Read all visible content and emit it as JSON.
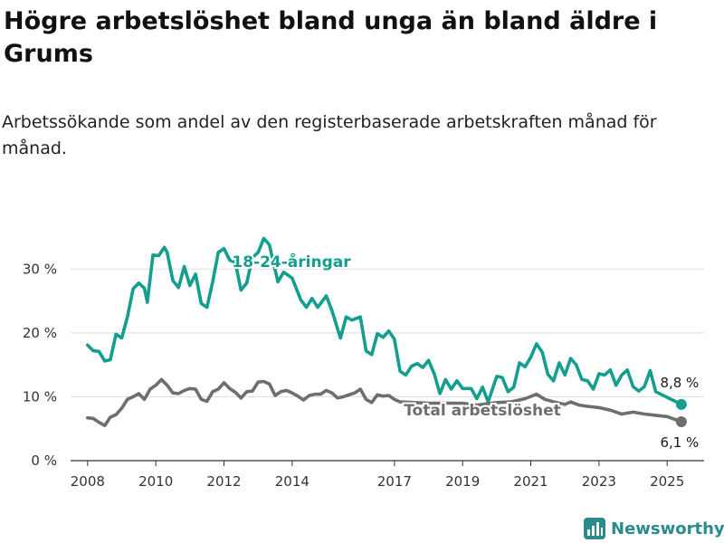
{
  "title": "Högre arbetslöshet bland unga än bland äldre i Grums",
  "subtitle": "Arbetssökande som andel av den registerbaserade arbetskraften månad för månad.",
  "brand": {
    "name": "Newsworthy",
    "icon": "newsworthy-bar-chart-icon"
  },
  "chart_data": {
    "type": "line",
    "title": "Högre arbetslöshet bland unga än bland äldre i Grums",
    "subtitle": "Arbetssökande som andel av den registerbaserade arbetskraften månad för månad.",
    "xlabel": "",
    "ylabel": "",
    "x_ticks": [
      "2008",
      "2010",
      "2012",
      "2014",
      "2017",
      "2019",
      "2021",
      "2023",
      "2025"
    ],
    "y_ticks": [
      {
        "value": 0,
        "label": "0 %"
      },
      {
        "value": 10,
        "label": "10 %"
      },
      {
        "value": 20,
        "label": "20 %"
      },
      {
        "value": 30,
        "label": "30 %"
      }
    ],
    "ylim": [
      0,
      35
    ],
    "xlim": [
      "2007-07",
      "2026-02"
    ],
    "grid": true,
    "legend": "none",
    "colors": {
      "youth": "#139e8e",
      "total": "#6e6e6e",
      "axis": "#333333",
      "grid": "#dddddd"
    },
    "series": [
      {
        "name": "18-24-åringar",
        "end_label": "8,8 %",
        "end_value": 8.8,
        "points": [
          [
            "2008-01",
            18.1
          ],
          [
            "2008-03",
            17.2
          ],
          [
            "2008-05",
            17.1
          ],
          [
            "2008-07",
            15.6
          ],
          [
            "2008-09",
            15.8
          ],
          [
            "2008-11",
            19.8
          ],
          [
            "2009-01",
            19.2
          ],
          [
            "2009-03",
            22.5
          ],
          [
            "2009-05",
            26.9
          ],
          [
            "2009-07",
            27.8
          ],
          [
            "2009-09",
            27.0
          ],
          [
            "2009-10",
            24.8
          ],
          [
            "2009-12",
            32.2
          ],
          [
            "2010-02",
            32.1
          ],
          [
            "2010-04",
            33.4
          ],
          [
            "2010-05",
            32.6
          ],
          [
            "2010-07",
            28.2
          ],
          [
            "2010-09",
            27.1
          ],
          [
            "2010-11",
            30.4
          ],
          [
            "2011-01",
            27.4
          ],
          [
            "2011-03",
            29.2
          ],
          [
            "2011-05",
            24.6
          ],
          [
            "2011-07",
            24.0
          ],
          [
            "2011-09",
            28.0
          ],
          [
            "2011-11",
            32.6
          ],
          [
            "2012-01",
            33.2
          ],
          [
            "2012-03",
            31.4
          ],
          [
            "2012-05",
            31.0
          ],
          [
            "2012-07",
            26.7
          ],
          [
            "2012-09",
            27.8
          ],
          [
            "2012-11",
            31.8
          ],
          [
            "2013-01",
            32.6
          ],
          [
            "2013-03",
            34.8
          ],
          [
            "2013-05",
            33.8
          ],
          [
            "2013-06",
            31.8
          ],
          [
            "2013-08",
            28.0
          ],
          [
            "2013-10",
            29.5
          ],
          [
            "2014-01",
            28.6
          ],
          [
            "2014-04",
            25.2
          ],
          [
            "2014-06",
            24.0
          ],
          [
            "2014-08",
            25.4
          ],
          [
            "2014-10",
            24.0
          ],
          [
            "2015-01",
            25.8
          ],
          [
            "2015-03",
            23.5
          ],
          [
            "2015-05",
            20.6
          ],
          [
            "2015-06",
            19.2
          ],
          [
            "2015-08",
            22.5
          ],
          [
            "2015-10",
            22.0
          ],
          [
            "2016-01",
            22.5
          ],
          [
            "2016-03",
            17.2
          ],
          [
            "2016-05",
            16.6
          ],
          [
            "2016-07",
            19.9
          ],
          [
            "2016-09",
            19.3
          ],
          [
            "2016-11",
            20.3
          ],
          [
            "2017-01",
            19.0
          ],
          [
            "2017-03",
            14.0
          ],
          [
            "2017-05",
            13.4
          ],
          [
            "2017-07",
            14.8
          ],
          [
            "2017-09",
            15.2
          ],
          [
            "2017-11",
            14.6
          ],
          [
            "2018-01",
            15.7
          ],
          [
            "2018-03",
            13.6
          ],
          [
            "2018-05",
            10.5
          ],
          [
            "2018-07",
            12.7
          ],
          [
            "2018-09",
            11.2
          ],
          [
            "2018-11",
            12.5
          ],
          [
            "2019-01",
            11.3
          ],
          [
            "2019-04",
            11.3
          ],
          [
            "2019-06",
            9.7
          ],
          [
            "2019-08",
            11.5
          ],
          [
            "2019-10",
            9.2
          ],
          [
            "2020-01",
            13.2
          ],
          [
            "2020-03",
            13.0
          ],
          [
            "2020-05",
            10.8
          ],
          [
            "2020-07",
            11.5
          ],
          [
            "2020-09",
            15.3
          ],
          [
            "2020-11",
            14.7
          ],
          [
            "2021-01",
            16.2
          ],
          [
            "2021-03",
            18.3
          ],
          [
            "2021-05",
            17.0
          ],
          [
            "2021-07",
            13.5
          ],
          [
            "2021-09",
            12.5
          ],
          [
            "2021-11",
            15.3
          ],
          [
            "2022-01",
            13.4
          ],
          [
            "2022-03",
            16.0
          ],
          [
            "2022-05",
            15.0
          ],
          [
            "2022-07",
            12.7
          ],
          [
            "2022-09",
            12.5
          ],
          [
            "2022-11",
            11.2
          ],
          [
            "2023-01",
            13.6
          ],
          [
            "2023-03",
            13.4
          ],
          [
            "2023-05",
            14.2
          ],
          [
            "2023-07",
            11.8
          ],
          [
            "2023-09",
            13.4
          ],
          [
            "2023-11",
            14.2
          ],
          [
            "2024-01",
            11.6
          ],
          [
            "2024-03",
            10.9
          ],
          [
            "2024-05",
            11.6
          ],
          [
            "2024-07",
            14.1
          ],
          [
            "2024-09",
            10.8
          ],
          [
            "2025-06",
            8.8
          ]
        ]
      },
      {
        "name": "Total arbetslöshet",
        "end_label": "6,1 %",
        "end_value": 6.1,
        "points": [
          [
            "2008-01",
            6.7
          ],
          [
            "2008-03",
            6.6
          ],
          [
            "2008-05",
            6.0
          ],
          [
            "2008-07",
            5.5
          ],
          [
            "2008-09",
            6.8
          ],
          [
            "2008-11",
            7.2
          ],
          [
            "2009-01",
            8.2
          ],
          [
            "2009-03",
            9.6
          ],
          [
            "2009-05",
            10.0
          ],
          [
            "2009-07",
            10.5
          ],
          [
            "2009-09",
            9.6
          ],
          [
            "2009-11",
            11.2
          ],
          [
            "2010-01",
            11.8
          ],
          [
            "2010-03",
            12.7
          ],
          [
            "2010-05",
            11.8
          ],
          [
            "2010-07",
            10.6
          ],
          [
            "2010-09",
            10.5
          ],
          [
            "2010-11",
            11.0
          ],
          [
            "2011-01",
            11.3
          ],
          [
            "2011-03",
            11.2
          ],
          [
            "2011-05",
            9.6
          ],
          [
            "2011-07",
            9.3
          ],
          [
            "2011-09",
            10.8
          ],
          [
            "2011-11",
            11.2
          ],
          [
            "2012-01",
            12.2
          ],
          [
            "2012-03",
            11.3
          ],
          [
            "2012-05",
            10.7
          ],
          [
            "2012-07",
            9.8
          ],
          [
            "2012-09",
            10.8
          ],
          [
            "2012-11",
            10.9
          ],
          [
            "2013-01",
            12.3
          ],
          [
            "2013-03",
            12.4
          ],
          [
            "2013-05",
            12.0
          ],
          [
            "2013-07",
            10.2
          ],
          [
            "2013-09",
            10.8
          ],
          [
            "2013-11",
            11.0
          ],
          [
            "2014-01",
            10.6
          ],
          [
            "2014-03",
            10.1
          ],
          [
            "2014-05",
            9.5
          ],
          [
            "2014-07",
            10.2
          ],
          [
            "2014-09",
            10.4
          ],
          [
            "2014-11",
            10.4
          ],
          [
            "2015-01",
            11.0
          ],
          [
            "2015-03",
            10.6
          ],
          [
            "2015-05",
            9.8
          ],
          [
            "2015-07",
            10.0
          ],
          [
            "2015-09",
            10.3
          ],
          [
            "2015-11",
            10.6
          ],
          [
            "2016-01",
            11.2
          ],
          [
            "2016-03",
            9.6
          ],
          [
            "2016-05",
            9.1
          ],
          [
            "2016-07",
            10.3
          ],
          [
            "2016-09",
            10.1
          ],
          [
            "2016-11",
            10.2
          ],
          [
            "2017-01",
            9.6
          ],
          [
            "2017-03",
            9.2
          ],
          [
            "2018-01",
            9.0
          ],
          [
            "2019-01",
            9.0
          ],
          [
            "2019-06",
            8.7
          ],
          [
            "2020-01",
            9.1
          ],
          [
            "2020-06",
            9.2
          ],
          [
            "2020-11",
            9.7
          ],
          [
            "2021-03",
            10.4
          ],
          [
            "2021-06",
            9.6
          ],
          [
            "2021-10",
            9.1
          ],
          [
            "2022-01",
            8.8
          ],
          [
            "2022-03",
            9.2
          ],
          [
            "2022-06",
            8.7
          ],
          [
            "2022-09",
            8.5
          ],
          [
            "2023-01",
            8.3
          ],
          [
            "2023-05",
            7.9
          ],
          [
            "2023-09",
            7.3
          ],
          [
            "2024-01",
            7.6
          ],
          [
            "2024-05",
            7.3
          ],
          [
            "2024-09",
            7.1
          ],
          [
            "2025-01",
            6.9
          ],
          [
            "2025-06",
            6.1
          ]
        ]
      }
    ]
  }
}
